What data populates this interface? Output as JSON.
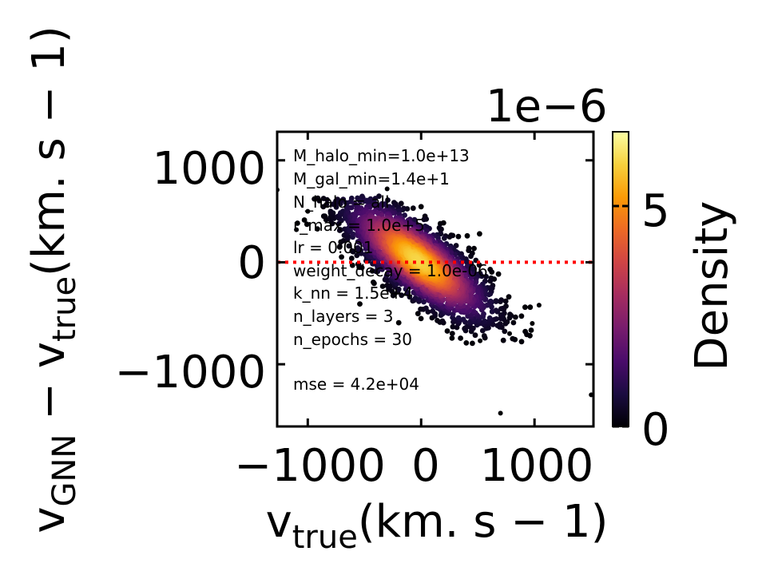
{
  "chart_data": {
    "type": "scatter",
    "subtype": "density-colored scatter with colorbar",
    "xlabel": "v_true(km. s − 1)",
    "ylabel": "v_GNN − v_true(km. s − 1)",
    "x_ticks": [
      "−1000",
      "0",
      "1000"
    ],
    "y_ticks": [
      "1000",
      "0",
      "−1000"
    ],
    "xlim": [
      -1270,
      1520
    ],
    "ylim": [
      -1610,
      1280
    ],
    "reference_line": {
      "y": 0,
      "color": "#ff0000",
      "style": "dotted"
    },
    "annotations": [
      "M_halo_min=1.0e+13",
      "M_gal_min=1.4e+1",
      "N_halo = all",
      "r_max = 1.0e+5",
      "lr = 0.001",
      "weight_decay = 1.0e-06",
      "k_nn = 1.5e+4",
      "n_layers = 3",
      "n_epochs = 30",
      "mse = 4.2e+04"
    ],
    "density_cloud": {
      "center": [
        -30,
        20
      ],
      "x_spread": 330,
      "slope": -0.72,
      "y_scatter": 190,
      "x_range": [
        -1100,
        1000
      ],
      "y_range": [
        -800,
        650
      ],
      "n_points": 2600
    },
    "outliers": [
      {
        "x": -1270,
        "y": 710
      },
      {
        "x": 700,
        "y": -1480
      },
      {
        "x": 1500,
        "y": -1300
      },
      {
        "x": 1040,
        "y": -420
      },
      {
        "x": 980,
        "y": -600
      },
      {
        "x": 520,
        "y": -770
      },
      {
        "x": -300,
        "y": 720
      },
      {
        "x": -1000,
        "y": 500
      },
      {
        "x": -1100,
        "y": 320
      },
      {
        "x": 780,
        "y": -700
      }
    ],
    "colorbar": {
      "label": "Density",
      "ticks": [
        "0",
        "5"
      ],
      "range": [
        0,
        6.9
      ],
      "offset_text": "1e−6",
      "colormap": "inferno",
      "colors": [
        "#000004",
        "#1b0c41",
        "#4a0c6b",
        "#781c6d",
        "#a52c60",
        "#cf4446",
        "#ed6925",
        "#fb9b06",
        "#f7d13d",
        "#fcffa4"
      ]
    },
    "grid": false,
    "legend": "none"
  }
}
